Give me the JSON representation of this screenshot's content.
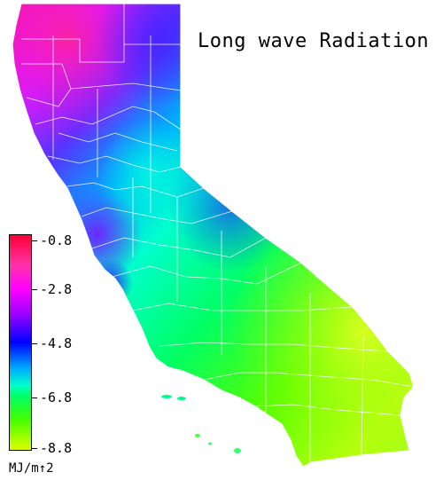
{
  "title": "Long wave Radiation",
  "legend": {
    "labels": [
      "-0.8",
      "-2.8",
      "-4.8",
      "-6.8",
      "-8.8"
    ],
    "units": "MJ/m↑2"
  },
  "colors": {
    "high": "#ff0033",
    "magenta": "#ff00ff",
    "purple": "#8800ff",
    "blue": "#0000ff",
    "cyan": "#00ccff",
    "teal": "#00ffaa",
    "green": "#00ff55",
    "lime": "#66ff00",
    "yellow": "#ddff22",
    "county_lines": "#ffffff"
  }
}
